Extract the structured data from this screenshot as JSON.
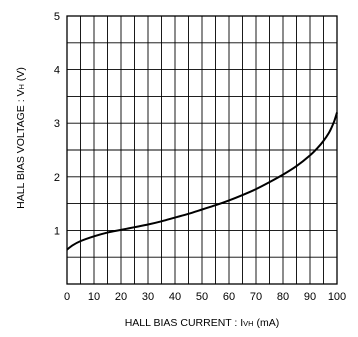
{
  "chart_data": {
    "type": "line",
    "xlabel": "HALL BIAS CURRENT : I",
    "xlabel_sub": "VH",
    "xlabel_unit": " (mA)",
    "ylabel": "HALL BIAS VOLTAGE : V",
    "ylabel_sub": "H",
    "ylabel_unit": " (V)",
    "xlim": [
      0,
      100
    ],
    "ylim": [
      0,
      5
    ],
    "x_grid_step": 5,
    "y_grid_step": 0.5,
    "x_ticks": [
      0,
      10,
      20,
      30,
      40,
      50,
      60,
      70,
      80,
      90,
      100
    ],
    "y_ticks": [
      1,
      2,
      3,
      4,
      5
    ],
    "grid": true,
    "series": [
      {
        "x": [
          0,
          2,
          5,
          10,
          15,
          20,
          25,
          30,
          35,
          40,
          45,
          50,
          55,
          60,
          65,
          70,
          75,
          80,
          85,
          90,
          93,
          95,
          97,
          98,
          99,
          100
        ],
        "y": [
          0.64,
          0.72,
          0.8,
          0.89,
          0.96,
          1.01,
          1.06,
          1.11,
          1.17,
          1.24,
          1.31,
          1.39,
          1.47,
          1.56,
          1.66,
          1.77,
          1.9,
          2.04,
          2.2,
          2.4,
          2.55,
          2.67,
          2.82,
          2.92,
          3.04,
          3.2
        ],
        "color": "#000000"
      }
    ]
  }
}
